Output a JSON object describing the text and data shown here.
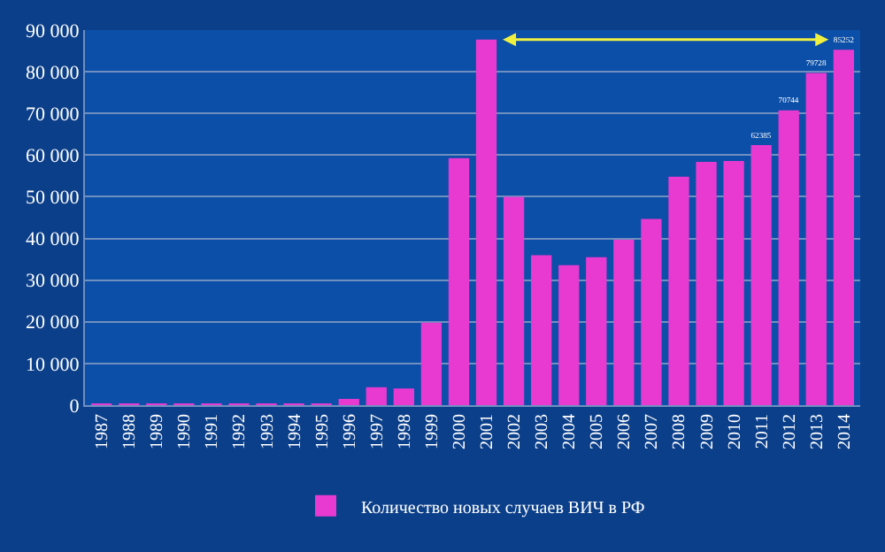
{
  "chart_data": {
    "type": "bar",
    "categories": [
      "1987",
      "1988",
      "1989",
      "1990",
      "1991",
      "1992",
      "1993",
      "1994",
      "1995",
      "1996",
      "1997",
      "1998",
      "1999",
      "2000",
      "2001",
      "2002",
      "2003",
      "2004",
      "2005",
      "2006",
      "2007",
      "2008",
      "2009",
      "2010",
      "2011",
      "2012",
      "2013",
      "2014"
    ],
    "series": [
      {
        "name": "Количество новых случаев ВИЧ в РФ",
        "color": "#e83ad0",
        "values": [
          100,
          100,
          100,
          100,
          100,
          100,
          100,
          100,
          200,
          1500,
          4300,
          4000,
          19800,
          59300,
          87700,
          50000,
          36000,
          33600,
          35500,
          39700,
          44700,
          54800,
          58400,
          58600,
          62385,
          70744,
          79728,
          85252
        ],
        "value_labels": [
          null,
          null,
          null,
          null,
          null,
          null,
          null,
          null,
          null,
          null,
          null,
          null,
          null,
          null,
          null,
          null,
          null,
          null,
          null,
          null,
          null,
          null,
          null,
          null,
          "62385",
          "70744",
          "79728",
          "85252"
        ]
      }
    ],
    "ylim": [
      0,
      90000
    ],
    "yticks": [
      {
        "value": 0,
        "label": "0"
      },
      {
        "value": 10000,
        "label": "10 000"
      },
      {
        "value": 20000,
        "label": "20 000"
      },
      {
        "value": 30000,
        "label": "30 000"
      },
      {
        "value": 40000,
        "label": "40 000"
      },
      {
        "value": 50000,
        "label": "50 000"
      },
      {
        "value": 60000,
        "label": "60 000"
      },
      {
        "value": 70000,
        "label": "70 000"
      },
      {
        "value": 80000,
        "label": "80 000"
      },
      {
        "value": 90000,
        "label": "90 000"
      }
    ],
    "grid": "y",
    "legend": "bottom"
  }
}
